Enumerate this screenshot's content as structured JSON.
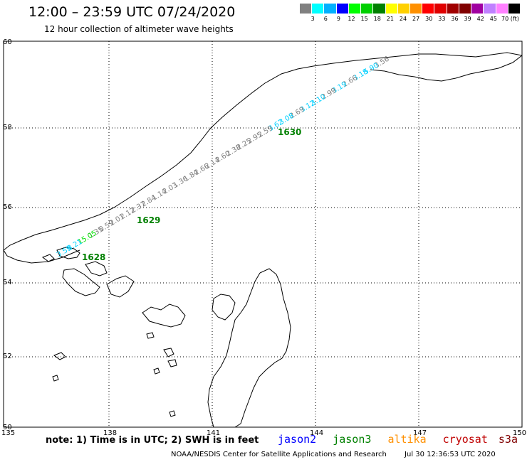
{
  "title": "12:00 – 23:59 UTC 07/24/2020",
  "subtitle": "12 hour collection of altimeter wave heights",
  "legend": {
    "labels": [
      "3",
      "6",
      "9",
      "12",
      "15",
      "18",
      "21",
      "24",
      "27",
      "30",
      "33",
      "36",
      "39",
      "42",
      "45",
      "70 (ft)"
    ],
    "colors": [
      "#808080",
      "#00ffff",
      "#00b0ff",
      "#0000ff",
      "#00ff00",
      "#00d000",
      "#008000",
      "#ffff00",
      "#ffd000",
      "#ff9000",
      "#ff0000",
      "#e00000",
      "#a00000",
      "#800000",
      "#a000a0",
      "#c080ff",
      "#ff80ff",
      "#000000"
    ]
  },
  "axes": {
    "lat_ticks": [
      "60",
      "58",
      "56",
      "54",
      "52",
      "50"
    ],
    "lon_ticks": [
      "135",
      "138",
      "141",
      "144",
      "147",
      "150"
    ]
  },
  "track": {
    "wave_labels": [
      {
        "text": "3.56",
        "color": "#808080"
      },
      {
        "text": "5.90",
        "color": "#00d0ff"
      },
      {
        "text": "3.18",
        "color": "#00d0ff"
      },
      {
        "text": "2.66",
        "color": "#808080"
      },
      {
        "text": "3.19",
        "color": "#00d0ff"
      },
      {
        "text": "2.99",
        "color": "#808080"
      },
      {
        "text": "3.10",
        "color": "#00d0ff"
      },
      {
        "text": "3.12",
        "color": "#00d0ff"
      },
      {
        "text": "2.69",
        "color": "#808080"
      },
      {
        "text": "3.08",
        "color": "#00d0ff"
      },
      {
        "text": "3.62",
        "color": "#00d0ff"
      },
      {
        "text": "2.59",
        "color": "#808080"
      },
      {
        "text": "2.95",
        "color": "#808080"
      },
      {
        "text": "2.25",
        "color": "#808080"
      },
      {
        "text": "2.38",
        "color": "#808080"
      },
      {
        "text": "2.60",
        "color": "#808080"
      },
      {
        "text": "2.14",
        "color": "#808080"
      },
      {
        "text": "2.66",
        "color": "#808080"
      },
      {
        "text": "1.84",
        "color": "#808080"
      },
      {
        "text": "1.36",
        "color": "#808080"
      },
      {
        "text": "2.03",
        "color": "#808080"
      },
      {
        "text": "1.14",
        "color": "#808080"
      },
      {
        "text": "2.84",
        "color": "#808080"
      },
      {
        "text": "2.37",
        "color": "#808080"
      },
      {
        "text": "2.12",
        "color": "#808080"
      },
      {
        "text": "2.01",
        "color": "#808080"
      },
      {
        "text": "0.59",
        "color": "#808080"
      },
      {
        "text": "1.35",
        "color": "#808080"
      },
      {
        "text": "15.05",
        "color": "#00e000"
      },
      {
        "text": "8.21",
        "color": "#00d0ff"
      },
      {
        "text": "3.59",
        "color": "#00d0ff"
      }
    ],
    "time_labels": [
      {
        "text": "1630",
        "color": "#008000"
      },
      {
        "text": "1629",
        "color": "#008000"
      },
      {
        "text": "1628",
        "color": "#008000"
      }
    ]
  },
  "footer": {
    "note": "note:  1) Time is in UTC;  2) SWH is in feet",
    "satellites": [
      {
        "name": "jason2",
        "color": "#0000ff"
      },
      {
        "name": "jason3",
        "color": "#008000"
      },
      {
        "name": "altika",
        "color": "#ff9000"
      },
      {
        "name": "cryosat",
        "color": "#c00000"
      },
      {
        "name": "s3a",
        "color": "#800000"
      }
    ],
    "credit": "NOAA/NESDIS Center for Satellite Applications and Research",
    "timestamp": "Jul 30 12:36:53 UTC 2020"
  }
}
